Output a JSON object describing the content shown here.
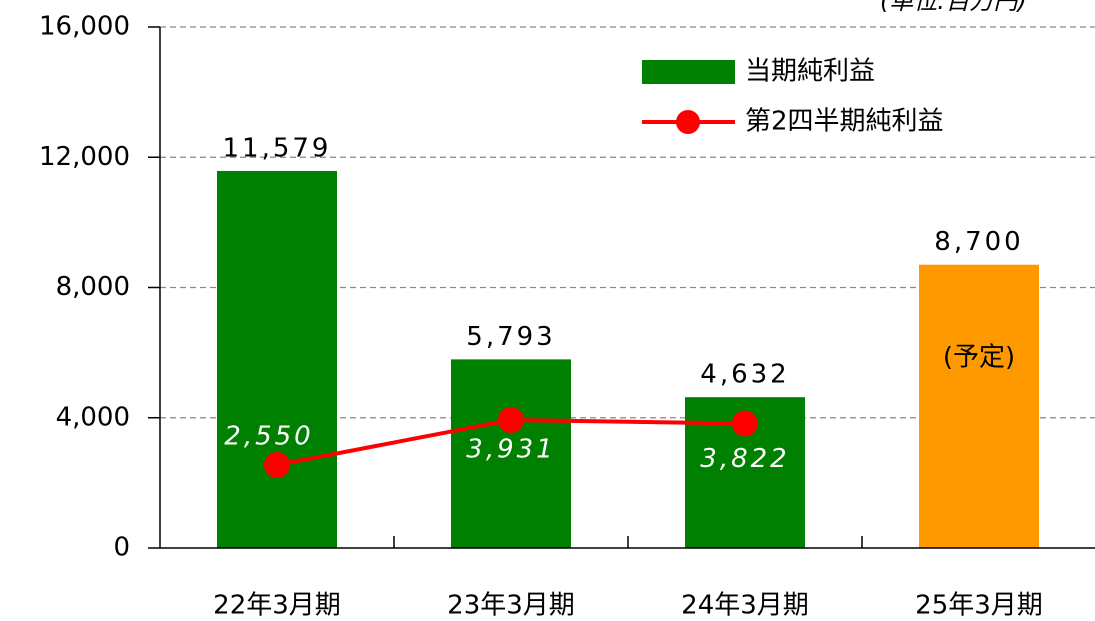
{
  "chart_data": {
    "type": "bar",
    "unit_label": "(単位:百万円)",
    "categories": [
      "22年3月期",
      "23年3月期",
      "24年3月期",
      "25年3月期"
    ],
    "series": [
      {
        "name": "当期純利益",
        "type": "bar",
        "color": "#008000",
        "colors": [
          "#008000",
          "#008000",
          "#008000",
          "#ff9900"
        ],
        "values": [
          11579,
          5793,
          4632,
          8700
        ],
        "value_labels": [
          "11,579",
          "5,793",
          "4,632",
          "8,700"
        ]
      },
      {
        "name": "第2四半期純利益",
        "type": "line",
        "color": "#ff0000",
        "values": [
          2550,
          3931,
          3822,
          null
        ],
        "value_labels": [
          "2,550",
          "3,931",
          "3,822",
          null
        ]
      }
    ],
    "annotation": "(予定)",
    "ylim": [
      0,
      16000
    ],
    "yticks": [
      0,
      {
        "value": 4000,
        "label": "4,000"
      },
      {
        "value": 8000,
        "label": "8,000"
      },
      {
        "value": 12000,
        "label": "12,000"
      },
      {
        "value": 16000,
        "label": "16,000"
      }
    ],
    "grid": true
  }
}
